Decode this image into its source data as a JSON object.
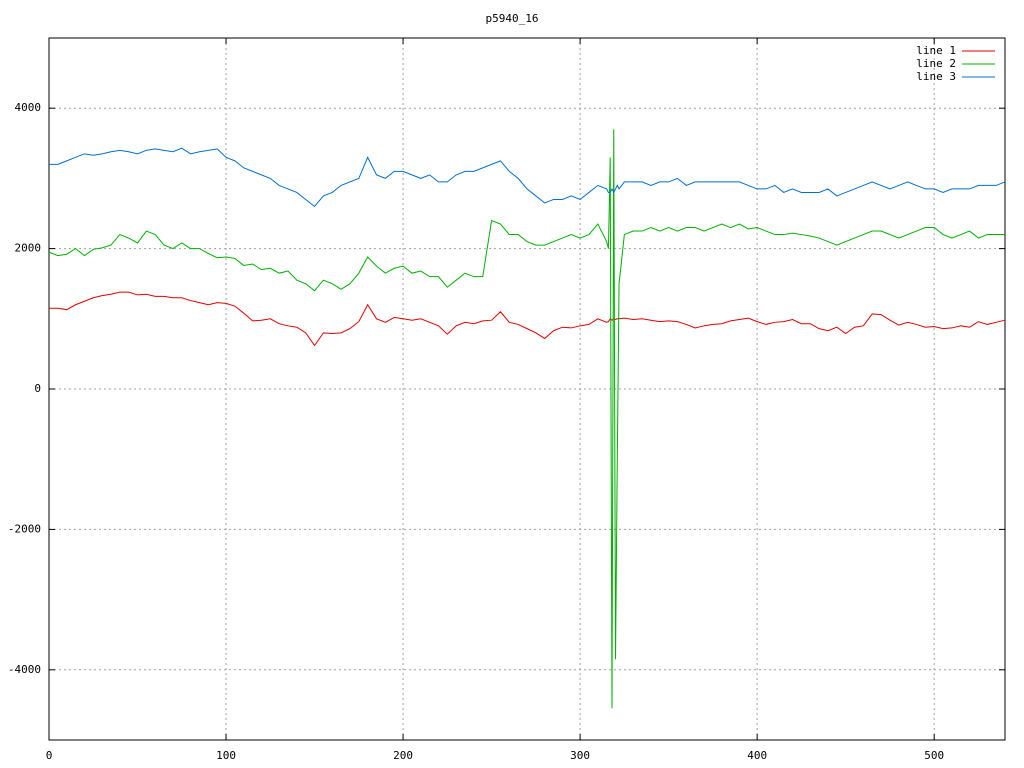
{
  "chart_data": {
    "type": "line",
    "title": "p5940_16",
    "x": [
      0,
      5,
      10,
      15,
      20,
      25,
      30,
      35,
      40,
      45,
      50,
      55,
      60,
      65,
      70,
      75,
      80,
      85,
      90,
      95,
      100,
      105,
      110,
      115,
      120,
      125,
      130,
      135,
      140,
      145,
      150,
      155,
      160,
      165,
      170,
      175,
      180,
      185,
      190,
      195,
      200,
      205,
      210,
      215,
      220,
      225,
      230,
      235,
      240,
      245,
      250,
      255,
      260,
      265,
      270,
      275,
      280,
      285,
      290,
      295,
      300,
      305,
      310,
      315,
      316,
      317,
      318,
      319,
      320,
      321,
      322,
      325,
      330,
      335,
      340,
      345,
      350,
      355,
      360,
      365,
      370,
      375,
      380,
      385,
      390,
      395,
      400,
      405,
      410,
      415,
      420,
      425,
      430,
      435,
      440,
      445,
      450,
      455,
      460,
      465,
      470,
      475,
      480,
      485,
      490,
      495,
      500,
      505,
      510,
      515,
      520,
      525,
      530,
      535,
      540
    ],
    "series": [
      {
        "name": "line 1",
        "color": "#e00000",
        "values": [
          1150,
          1150,
          1130,
          1200,
          1250,
          1300,
          1330,
          1350,
          1380,
          1380,
          1340,
          1350,
          1320,
          1320,
          1300,
          1300,
          1260,
          1230,
          1200,
          1230,
          1220,
          1180,
          1080,
          970,
          980,
          1000,
          930,
          900,
          880,
          800,
          620,
          800,
          790,
          800,
          860,
          960,
          1200,
          1000,
          950,
          1020,
          1000,
          980,
          1000,
          950,
          900,
          780,
          900,
          950,
          930,
          970,
          980,
          1100,
          950,
          920,
          860,
          800,
          720,
          830,
          880,
          870,
          900,
          920,
          1000,
          950,
          960,
          1000,
          980,
          1000,
          990,
          1000,
          1000,
          1010,
          990,
          1000,
          980,
          960,
          970,
          960,
          920,
          870,
          900,
          920,
          930,
          970,
          990,
          1010,
          960,
          920,
          950,
          960,
          990,
          930,
          930,
          860,
          830,
          880,
          790,
          880,
          900,
          1070,
          1060,
          980,
          910,
          950,
          920,
          880,
          890,
          860,
          870,
          900,
          880,
          960,
          920,
          950,
          980
        ]
      },
      {
        "name": "line 2",
        "color": "#00b000",
        "values": [
          1950,
          1900,
          1920,
          2000,
          1900,
          1990,
          2010,
          2050,
          2200,
          2150,
          2080,
          2250,
          2200,
          2050,
          2000,
          2080,
          2000,
          2000,
          1930,
          1870,
          1880,
          1860,
          1760,
          1780,
          1700,
          1720,
          1650,
          1680,
          1550,
          1500,
          1400,
          1550,
          1500,
          1420,
          1500,
          1650,
          1880,
          1750,
          1650,
          1720,
          1750,
          1650,
          1680,
          1600,
          1600,
          1450,
          1550,
          1650,
          1600,
          1600,
          2400,
          2350,
          2200,
          2200,
          2100,
          2050,
          2050,
          2100,
          2150,
          2200,
          2150,
          2200,
          2350,
          2100,
          2000,
          3300,
          -4550,
          3700,
          -3850,
          -1000,
          1500,
          2200,
          2250,
          2250,
          2300,
          2250,
          2300,
          2250,
          2300,
          2300,
          2250,
          2300,
          2350,
          2300,
          2350,
          2280,
          2300,
          2250,
          2200,
          2200,
          2220,
          2200,
          2180,
          2150,
          2100,
          2050,
          2100,
          2150,
          2200,
          2250,
          2250,
          2200,
          2150,
          2200,
          2250,
          2300,
          2300,
          2200,
          2150,
          2200,
          2250,
          2150,
          2200,
          2200,
          2200
        ]
      },
      {
        "name": "line 3",
        "color": "#0070d0",
        "values": [
          3200,
          3200,
          3250,
          3300,
          3350,
          3330,
          3350,
          3380,
          3400,
          3380,
          3350,
          3400,
          3420,
          3400,
          3380,
          3430,
          3350,
          3380,
          3400,
          3420,
          3300,
          3250,
          3150,
          3100,
          3050,
          3000,
          2900,
          2850,
          2800,
          2700,
          2600,
          2750,
          2800,
          2900,
          2950,
          3000,
          3300,
          3050,
          3000,
          3100,
          3100,
          3050,
          3000,
          3050,
          2950,
          2950,
          3050,
          3100,
          3100,
          3150,
          3200,
          3250,
          3100,
          3000,
          2850,
          2750,
          2650,
          2700,
          2700,
          2750,
          2700,
          2800,
          2900,
          2850,
          2800,
          2800,
          2850,
          2800,
          2850,
          2900,
          2850,
          2950,
          2950,
          2950,
          2900,
          2950,
          2950,
          3000,
          2900,
          2950,
          2950,
          2950,
          2950,
          2950,
          2950,
          2900,
          2850,
          2850,
          2900,
          2800,
          2850,
          2800,
          2800,
          2800,
          2850,
          2750,
          2800,
          2850,
          2900,
          2950,
          2900,
          2850,
          2900,
          2950,
          2900,
          2850,
          2850,
          2800,
          2850,
          2850,
          2850,
          2900,
          2900,
          2900,
          2950
        ]
      }
    ],
    "xlim": [
      0,
      540
    ],
    "xticks": [
      0,
      100,
      200,
      300,
      400,
      500
    ],
    "ylim": [
      -5000,
      5000
    ],
    "yticks": [
      -4000,
      -2000,
      0,
      2000,
      4000
    ],
    "grid": true,
    "legend": "top-right"
  }
}
